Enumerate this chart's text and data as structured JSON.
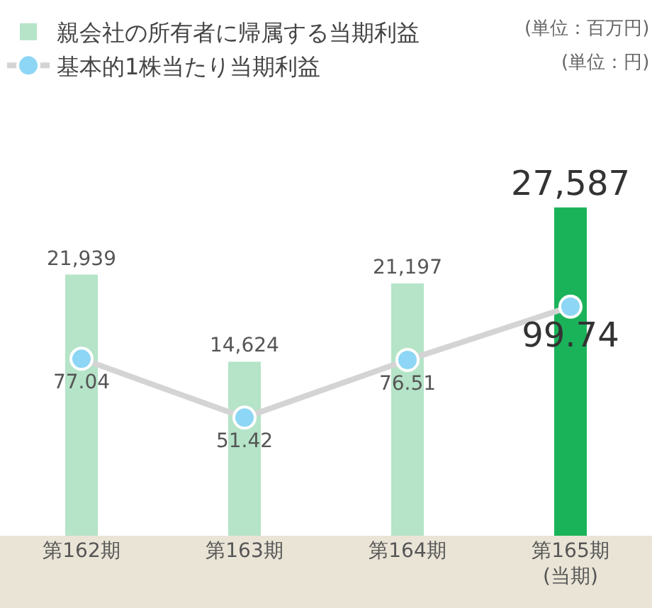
{
  "chart_data": {
    "type": "bar",
    "categories": [
      "第162期",
      "第163期",
      "第164期",
      "第165期\n(当期)"
    ],
    "series": [
      {
        "name": "親会社の所有者に帰属する当期利益",
        "colors": [
          "#b5e4c8",
          "#b5e4c8",
          "#b5e4c8",
          "#1bb35a"
        ],
        "values": [
          21939,
          14624,
          21197,
          27587
        ],
        "value_labels": [
          "21,939",
          "14,624",
          "21,197",
          "27,587"
        ]
      },
      {
        "name": "基本的1株当たり当期利益",
        "type": "line",
        "axis": "y2",
        "color": "#8dd6f5",
        "values": [
          77.04,
          51.42,
          76.51,
          99.74
        ]
      }
    ],
    "annotations": [
      "(単位：百万円)",
      "(単位：円)"
    ],
    "data_labels": true,
    "legend": "top left",
    "marker": "circle",
    "tick_labels": "x"
  }
}
